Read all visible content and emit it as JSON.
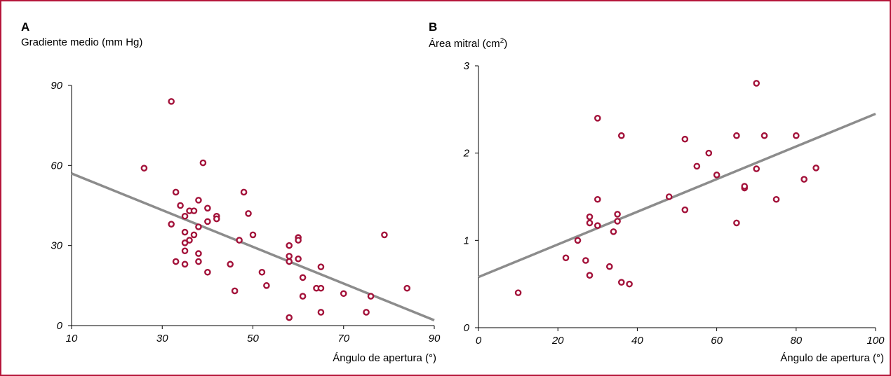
{
  "colors": {
    "border": "#b5163a",
    "points": "#a3123a",
    "trend": "#8c8c8c",
    "axis": "#000000"
  },
  "chart_data": [
    {
      "panel": "A",
      "type": "scatter",
      "title": "",
      "ylabel": "Gradiente medio (mm Hg)",
      "xlabel": "Ángulo de apertura (°)",
      "xlim": [
        10,
        90
      ],
      "ylim": [
        0,
        90
      ],
      "xticks": [
        "10",
        "30",
        "50",
        "70",
        "90"
      ],
      "yticks": [
        "0",
        "30",
        "60",
        "90"
      ],
      "grid": false,
      "points": [
        {
          "x": 32,
          "y": 84
        },
        {
          "x": 26,
          "y": 59
        },
        {
          "x": 39,
          "y": 61
        },
        {
          "x": 33,
          "y": 50
        },
        {
          "x": 48,
          "y": 50
        },
        {
          "x": 38,
          "y": 47
        },
        {
          "x": 34,
          "y": 45
        },
        {
          "x": 36,
          "y": 43
        },
        {
          "x": 37,
          "y": 43
        },
        {
          "x": 40,
          "y": 44
        },
        {
          "x": 49,
          "y": 42
        },
        {
          "x": 35,
          "y": 41
        },
        {
          "x": 42,
          "y": 41
        },
        {
          "x": 42,
          "y": 40
        },
        {
          "x": 40,
          "y": 39
        },
        {
          "x": 32,
          "y": 38
        },
        {
          "x": 38,
          "y": 37
        },
        {
          "x": 35,
          "y": 35
        },
        {
          "x": 37,
          "y": 34
        },
        {
          "x": 50,
          "y": 34
        },
        {
          "x": 79,
          "y": 34
        },
        {
          "x": 36,
          "y": 32
        },
        {
          "x": 47,
          "y": 32
        },
        {
          "x": 60,
          "y": 33
        },
        {
          "x": 60,
          "y": 32
        },
        {
          "x": 35,
          "y": 31
        },
        {
          "x": 58,
          "y": 30
        },
        {
          "x": 35,
          "y": 28
        },
        {
          "x": 38,
          "y": 27
        },
        {
          "x": 58,
          "y": 26
        },
        {
          "x": 60,
          "y": 25
        },
        {
          "x": 33,
          "y": 24
        },
        {
          "x": 38,
          "y": 24
        },
        {
          "x": 58,
          "y": 24
        },
        {
          "x": 35,
          "y": 23
        },
        {
          "x": 45,
          "y": 23
        },
        {
          "x": 65,
          "y": 22
        },
        {
          "x": 40,
          "y": 20
        },
        {
          "x": 52,
          "y": 20
        },
        {
          "x": 61,
          "y": 18
        },
        {
          "x": 53,
          "y": 15
        },
        {
          "x": 64,
          "y": 14
        },
        {
          "x": 65,
          "y": 14
        },
        {
          "x": 84,
          "y": 14
        },
        {
          "x": 46,
          "y": 13
        },
        {
          "x": 70,
          "y": 12
        },
        {
          "x": 61,
          "y": 11
        },
        {
          "x": 76,
          "y": 11
        },
        {
          "x": 65,
          "y": 5
        },
        {
          "x": 75,
          "y": 5
        },
        {
          "x": 58,
          "y": 3
        }
      ],
      "trendline": {
        "x": [
          10,
          90
        ],
        "y": [
          57,
          2
        ]
      }
    },
    {
      "panel": "B",
      "type": "scatter",
      "title": "",
      "ylabel": "Área mitral (cm",
      "ylabel_superscript": "2",
      "ylabel_suffix": ")",
      "xlabel": "Ángulo de apertura (°)",
      "xlim": [
        0,
        100
      ],
      "ylim": [
        0,
        3
      ],
      "xticks": [
        "0",
        "20",
        "40",
        "60",
        "80",
        "100"
      ],
      "yticks": [
        "0",
        "1",
        "2",
        "3"
      ],
      "grid": false,
      "points": [
        {
          "x": 10,
          "y": 0.4
        },
        {
          "x": 22,
          "y": 0.8
        },
        {
          "x": 25,
          "y": 1.0
        },
        {
          "x": 27,
          "y": 0.77
        },
        {
          "x": 28,
          "y": 0.6
        },
        {
          "x": 28,
          "y": 1.2
        },
        {
          "x": 28,
          "y": 1.27
        },
        {
          "x": 30,
          "y": 1.17
        },
        {
          "x": 30,
          "y": 1.47
        },
        {
          "x": 30,
          "y": 2.4
        },
        {
          "x": 33,
          "y": 0.7
        },
        {
          "x": 34,
          "y": 1.1
        },
        {
          "x": 35,
          "y": 1.22
        },
        {
          "x": 35,
          "y": 1.3
        },
        {
          "x": 36,
          "y": 0.52
        },
        {
          "x": 36,
          "y": 2.2
        },
        {
          "x": 38,
          "y": 0.5
        },
        {
          "x": 48,
          "y": 1.5
        },
        {
          "x": 52,
          "y": 1.35
        },
        {
          "x": 52,
          "y": 2.16
        },
        {
          "x": 55,
          "y": 1.85
        },
        {
          "x": 58,
          "y": 2.0
        },
        {
          "x": 60,
          "y": 1.75
        },
        {
          "x": 65,
          "y": 1.2
        },
        {
          "x": 65,
          "y": 2.2
        },
        {
          "x": 67,
          "y": 1.6
        },
        {
          "x": 67,
          "y": 1.62
        },
        {
          "x": 70,
          "y": 1.82
        },
        {
          "x": 70,
          "y": 2.8
        },
        {
          "x": 72,
          "y": 2.2
        },
        {
          "x": 75,
          "y": 1.47
        },
        {
          "x": 80,
          "y": 2.2
        },
        {
          "x": 82,
          "y": 1.7
        },
        {
          "x": 85,
          "y": 1.83
        }
      ],
      "trendline": {
        "x": [
          0,
          100
        ],
        "y": [
          0.58,
          2.45
        ]
      }
    }
  ]
}
